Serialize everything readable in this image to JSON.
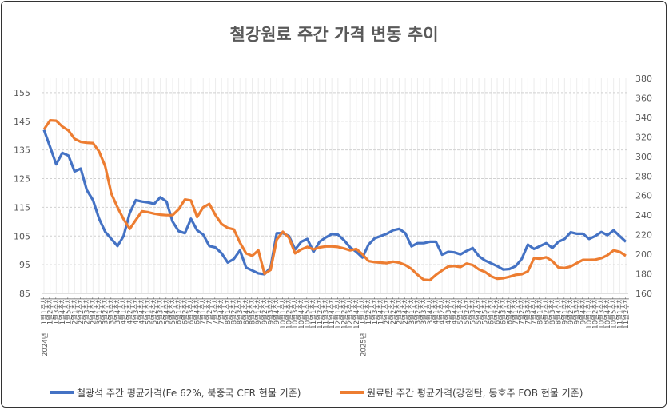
{
  "chart_data": {
    "type": "line",
    "title": "철강원료 주간 가격 변동 추이",
    "legend_position": "bottom",
    "grid": true,
    "y_left": {
      "range": [
        85,
        160
      ],
      "ticks": [
        85,
        95,
        105,
        115,
        125,
        135,
        145,
        155
      ]
    },
    "y_right": {
      "range": [
        160,
        380
      ],
      "ticks": [
        160,
        180,
        200,
        220,
        240,
        260,
        280,
        300,
        320,
        340,
        360,
        380
      ]
    },
    "years": [
      {
        "label": "2024년",
        "start": 0
      },
      {
        "label": "2025년",
        "start": 52
      }
    ],
    "categories": [
      "1월1주차",
      "1월2주차",
      "1월3주차",
      "1월4주차",
      "1월5주차",
      "2월1주차",
      "2월2주차",
      "2월3주차",
      "2월4주차",
      "3월1주차",
      "3월2주차",
      "3월3주차",
      "3월4주차",
      "4월1주차",
      "4월2주차",
      "4월3주차",
      "4월4주차",
      "5월1주차",
      "5월2주차",
      "5월3주차",
      "5월4주차",
      "5월5주차",
      "6월1주차",
      "6월2주차",
      "6월3주차",
      "6월4주차",
      "7월1주차",
      "7월2주차",
      "7월3주차",
      "7월4주차",
      "8월1주차",
      "8월2주차",
      "8월3주차",
      "8월4주차",
      "8월5주차",
      "9월1주차",
      "9월2주차",
      "9월3주차",
      "9월4주차",
      "10월1주차",
      "10월2주차",
      "10월3주차",
      "10월4주차",
      "10월5주차",
      "11월1주차",
      "11월2주차",
      "11월3주차",
      "11월4주차",
      "12월1주차",
      "12월2주차",
      "12월3주차",
      "12월4주차",
      "1월1주차",
      "1월2주차",
      "1월3주차",
      "1월4주차",
      "2월1주차",
      "2월2주차",
      "2월3주차",
      "2월4주차",
      "3월1주차",
      "3월2주차",
      "3월3주차",
      "3월4주차",
      "4월1주차",
      "4월2주차",
      "4월3주차",
      "4월4주차",
      "5월1주차",
      "5월2주차",
      "5월3주차",
      "5월4주차",
      "5월5주차",
      "6월1주차",
      "6월2주차",
      "6월3주차",
      "6월4주차",
      "7월1주차",
      "7월2주차",
      "7월3주차",
      "7월4주차",
      "8월1주차",
      "8월2주차",
      "8월3주차",
      "8월4주차",
      "9월1주차",
      "9월2주차",
      "9월3주차",
      "9월4주차",
      "10월1주차",
      "10월2주차",
      "10월3주차",
      "10월4주차",
      "10월5주차",
      "11월1주차",
      "11월2주차"
    ],
    "series": [
      {
        "name": "철광석 주간 평균가격(Fe 62%, 북중국 CFR 현물 기준)",
        "axis": "left",
        "color": "#4472C4",
        "values": [
          142,
          136,
          130,
          134,
          133,
          127.5,
          128.5,
          121,
          117.5,
          111,
          106.5,
          104,
          101.5,
          105,
          113,
          117.5,
          117,
          116.7,
          116.2,
          118.5,
          117,
          110,
          106.7,
          106,
          111,
          107,
          105.5,
          101.5,
          101,
          99,
          95.8,
          97,
          100,
          94,
          93,
          92,
          91.7,
          94,
          106,
          106,
          105,
          100.3,
          103,
          104,
          99.5,
          103,
          104.5,
          105.7,
          105.5,
          103.5,
          101,
          99.5,
          97.5,
          102,
          104.2,
          105,
          105.8,
          107,
          107.5,
          106,
          101.4,
          102.5,
          102.5,
          103,
          103,
          98.5,
          99.5,
          99.3,
          98.6,
          99.8,
          100.8,
          98,
          96.5,
          95.5,
          94.5,
          93.3,
          93.5,
          94.5,
          97,
          102,
          100.5,
          101.5,
          102.5,
          100.8,
          103,
          104,
          106.3,
          105.8,
          105.8,
          104,
          105,
          106.4,
          105.3,
          107,
          105,
          103
        ]
      },
      {
        "name": "원료탄 주간 평균가격(강점탄, 동호주 FOB 현물 기준)",
        "axis": "right",
        "color": "#ED7D31",
        "values": [
          327.6,
          337,
          336.6,
          330.5,
          326.5,
          318,
          315,
          314,
          313.7,
          305,
          290,
          262,
          248,
          236,
          226,
          235,
          244,
          243,
          241.5,
          240.5,
          240,
          240,
          246,
          256,
          255,
          238,
          248,
          251.5,
          240,
          231,
          227,
          225.4,
          212,
          201,
          198.4,
          204,
          180,
          184,
          215,
          223,
          217,
          201,
          205,
          207.5,
          205,
          207,
          208,
          208,
          207.5,
          206,
          204,
          205.5,
          200,
          193,
          192,
          191.5,
          191,
          192.5,
          191.5,
          189,
          185,
          179,
          174,
          173.5,
          179,
          183.5,
          187.5,
          188,
          187,
          190.5,
          189,
          184.5,
          182,
          177.5,
          175,
          175.5,
          177,
          179,
          179.6,
          182.5,
          196,
          195.5,
          197,
          193,
          186.5,
          186,
          187.5,
          191,
          194.3,
          194.3,
          194.5,
          196,
          199,
          204,
          202.5,
          198.4
        ]
      }
    ]
  }
}
